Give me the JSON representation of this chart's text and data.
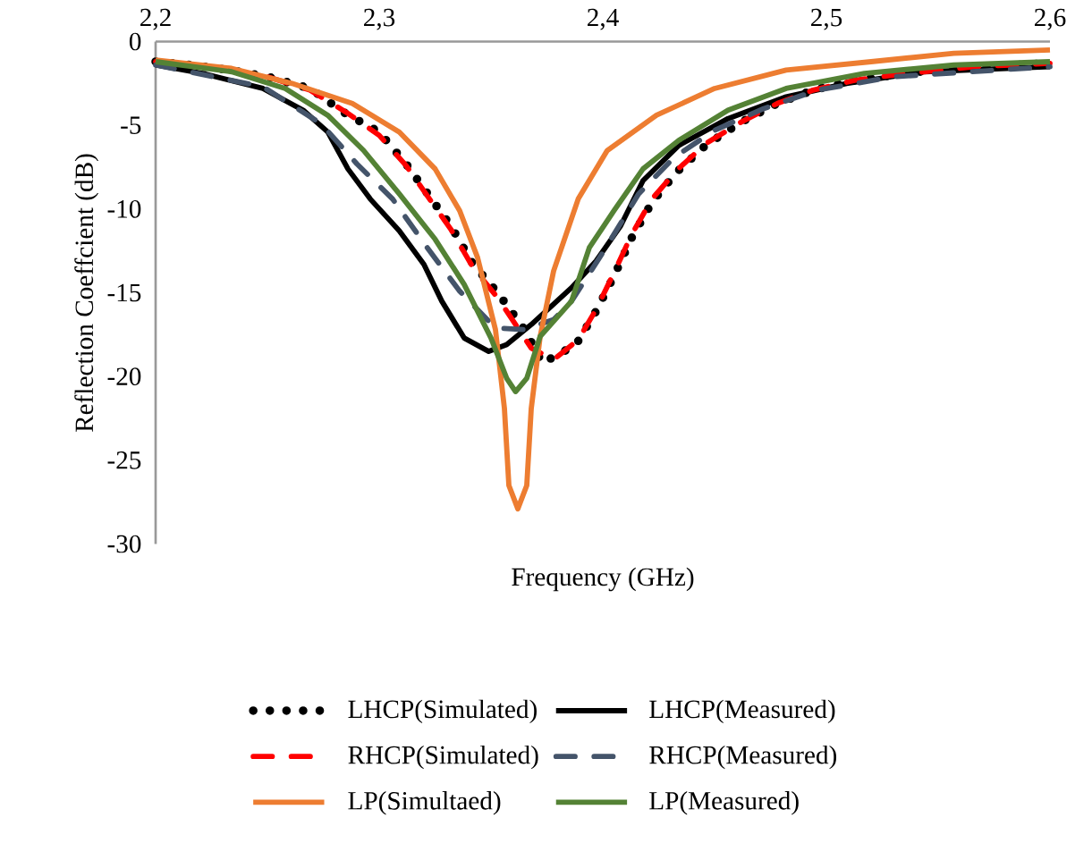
{
  "chart_data": {
    "type": "line",
    "xlabel": "Frequency (GHz)",
    "ylabel": "Reflection Coeffcient (dB)",
    "xlim": [
      2.2,
      2.6
    ],
    "ylim": [
      -30,
      0
    ],
    "xticks": [
      {
        "value": 2.2,
        "label": "2,2"
      },
      {
        "value": 2.3,
        "label": "2,3"
      },
      {
        "value": 2.4,
        "label": "2,4"
      },
      {
        "value": 2.5,
        "label": "2,5"
      },
      {
        "value": 2.6,
        "label": "2,6"
      }
    ],
    "yticks": [
      0,
      -5,
      -10,
      -15,
      -20,
      -25,
      -30
    ],
    "grid": false,
    "legend": "bottom",
    "series": [
      {
        "name": "LHCP(Simulated)",
        "color": "#000000",
        "line_style": "dotted",
        "x": [
          2.2,
          2.216,
          2.233,
          2.25,
          2.269,
          2.285,
          2.3,
          2.312,
          2.332,
          2.342,
          2.353,
          2.365,
          2.373,
          2.388,
          2.397,
          2.405,
          2.413,
          2.422,
          2.433,
          2.446,
          2.462,
          2.478,
          2.494,
          2.513,
          2.53,
          2.548,
          2.566,
          2.584,
          2.6
        ],
        "values": [
          -1.2,
          -1.4,
          -1.7,
          -2.1,
          -2.8,
          -4.3,
          -5.4,
          -7.3,
          -11.0,
          -13.3,
          -15.0,
          -17.2,
          -19.2,
          -18.1,
          -16.1,
          -14.0,
          -11.7,
          -9.6,
          -7.8,
          -6.2,
          -4.8,
          -3.7,
          -2.9,
          -2.3,
          -2.0,
          -1.7,
          -1.5,
          -1.4,
          -1.3
        ]
      },
      {
        "name": "LHCP(Measured)",
        "color": "#000000",
        "line_style": "solid",
        "x": [
          2.2,
          2.221,
          2.248,
          2.266,
          2.277,
          2.286,
          2.296,
          2.309,
          2.32,
          2.328,
          2.338,
          2.349,
          2.357,
          2.368,
          2.386,
          2.397,
          2.408,
          2.418,
          2.434,
          2.456,
          2.482,
          2.509,
          2.544,
          2.6
        ],
        "values": [
          -1.4,
          -1.9,
          -2.8,
          -4.1,
          -5.4,
          -7.6,
          -9.4,
          -11.3,
          -13.3,
          -15.5,
          -17.7,
          -18.5,
          -18.1,
          -16.9,
          -14.7,
          -13.1,
          -11.0,
          -8.3,
          -6.2,
          -4.6,
          -3.3,
          -2.5,
          -1.8,
          -1.5
        ]
      },
      {
        "name": "RHCP(Simulated)",
        "color": "#ff0000",
        "line_style": "dashed",
        "x": [
          2.2,
          2.233,
          2.25,
          2.269,
          2.285,
          2.3,
          2.312,
          2.332,
          2.342,
          2.353,
          2.368,
          2.378,
          2.389,
          2.397,
          2.405,
          2.413,
          2.422,
          2.433,
          2.446,
          2.462,
          2.478,
          2.494,
          2.513,
          2.53,
          2.566,
          2.6
        ],
        "values": [
          -1.2,
          -1.7,
          -2.1,
          -2.9,
          -4.2,
          -5.6,
          -7.4,
          -11.2,
          -13.5,
          -15.3,
          -18.3,
          -19.0,
          -17.8,
          -16.0,
          -13.8,
          -11.5,
          -9.4,
          -7.7,
          -6.1,
          -4.8,
          -3.7,
          -2.9,
          -2.3,
          -2.0,
          -1.5,
          -1.3
        ]
      },
      {
        "name": "RHCP(Measured)",
        "color": "#44546a",
        "line_style": "dashed",
        "x": [
          2.2,
          2.248,
          2.274,
          2.29,
          2.306,
          2.322,
          2.336,
          2.352,
          2.365,
          2.378,
          2.386,
          2.4,
          2.416,
          2.432,
          2.45,
          2.472,
          2.496,
          2.53,
          2.6
        ],
        "values": [
          -1.4,
          -2.7,
          -4.9,
          -7.3,
          -9.4,
          -12.4,
          -14.9,
          -17.1,
          -17.2,
          -16.6,
          -15.5,
          -12.6,
          -9.1,
          -6.9,
          -5.3,
          -4.0,
          -2.9,
          -2.1,
          -1.5
        ]
      },
      {
        "name": "LP(Simultaed)",
        "color": "#ed7d31",
        "line_style": "solid",
        "x": [
          2.2,
          2.234,
          2.261,
          2.288,
          2.309,
          2.325,
          2.336,
          2.344,
          2.352,
          2.356,
          2.358,
          2.362,
          2.366,
          2.368,
          2.372,
          2.378,
          2.389,
          2.402,
          2.424,
          2.45,
          2.482,
          2.52,
          2.557,
          2.6
        ],
        "values": [
          -1.1,
          -1.6,
          -2.5,
          -3.7,
          -5.4,
          -7.6,
          -10.1,
          -12.9,
          -17.2,
          -21.9,
          -26.5,
          -27.9,
          -26.5,
          -21.9,
          -17.6,
          -13.7,
          -9.4,
          -6.5,
          -4.4,
          -2.8,
          -1.7,
          -1.2,
          -0.7,
          -0.5
        ]
      },
      {
        "name": "LP(Measured)",
        "color": "#548235",
        "line_style": "solid",
        "x": [
          2.2,
          2.234,
          2.258,
          2.277,
          2.293,
          2.309,
          2.325,
          2.338,
          2.35,
          2.357,
          2.361,
          2.366,
          2.372,
          2.386,
          2.394,
          2.405,
          2.418,
          2.434,
          2.456,
          2.482,
          2.517,
          2.557,
          2.6
        ],
        "values": [
          -1.2,
          -1.8,
          -2.8,
          -4.4,
          -6.5,
          -9.1,
          -11.8,
          -14.5,
          -17.7,
          -20.1,
          -20.9,
          -20.1,
          -17.6,
          -15.5,
          -12.3,
          -10.1,
          -7.6,
          -5.9,
          -4.1,
          -2.8,
          -1.9,
          -1.4,
          -1.2
        ]
      }
    ]
  }
}
